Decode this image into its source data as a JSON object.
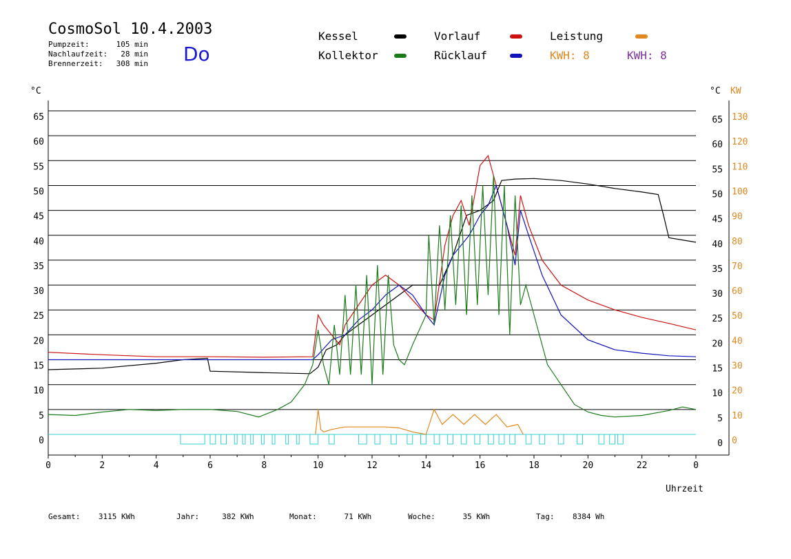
{
  "header": {
    "title": "CosmoSol 10.4.2003",
    "day": "Do",
    "stats": [
      {
        "label": "Pumpzeit:",
        "value": "105 min"
      },
      {
        "label": "Nachlaufzeit:",
        "value": "28 min"
      },
      {
        "label": "Brennerzeit:",
        "value": "308 min"
      }
    ]
  },
  "legend": {
    "kessel": "Kessel",
    "kollektor": "Kollektor",
    "vorlauf": "Vorlauf",
    "ruecklauf": "Rücklauf",
    "leistung": "Leistung",
    "kwh1": "KWH: 8",
    "kwh2": "KWH: 8"
  },
  "colors": {
    "kessel": "#000000",
    "kollektor": "#1a7a1a",
    "vorlauf": "#cc1111",
    "ruecklauf": "#1111bb",
    "leistung": "#e08820",
    "kwh2": "#8030a0",
    "pump": "#30d0d0"
  },
  "footer": [
    {
      "label": "Gesamt:",
      "value": "3115 KWh"
    },
    {
      "label": "Jahr:",
      "value": "382 KWh"
    },
    {
      "label": "Monat:",
      "value": "71 KWh"
    },
    {
      "label": "Woche:",
      "value": "35 KWh"
    },
    {
      "label": "Tag:",
      "value": "8384 Wh"
    }
  ],
  "chart_data": {
    "type": "line",
    "title": "CosmoSol 10.4.2003",
    "xlabel": "Uhrzeit",
    "ylabel_left": "°C",
    "ylabel_right_temp": "°C",
    "ylabel_right_power": "KW",
    "xlim": [
      0,
      24
    ],
    "ylim": [
      0,
      65
    ],
    "ylim_power": [
      0,
      130
    ],
    "x_tick_labels": [
      "0",
      "2",
      "4",
      "6",
      "8",
      "10",
      "12",
      "14",
      "16",
      "18",
      "20",
      "22",
      "0"
    ],
    "y_ticks": [
      0,
      5,
      10,
      15,
      20,
      25,
      30,
      35,
      40,
      45,
      50,
      55,
      60,
      65
    ],
    "y_ticks_power": [
      0,
      10,
      20,
      30,
      40,
      50,
      60,
      70,
      80,
      90,
      100,
      110,
      120,
      130
    ],
    "grid": true,
    "legend_position": "top",
    "series": [
      {
        "name": "Kessel",
        "x": [
          0,
          2,
          4,
          5,
          5.9,
          6,
          8,
          9.7,
          10,
          10.3,
          10.7,
          11,
          11.5,
          12,
          12.5,
          13,
          13.5,
          14,
          14.5,
          15,
          15.5,
          16,
          16.5,
          16.8,
          17.3,
          18,
          19,
          20,
          21,
          22,
          22.6,
          22.8,
          23,
          24
        ],
        "y": [
          13,
          13.3,
          14.3,
          15,
          15.3,
          12.7,
          12.4,
          12.2,
          13.5,
          17,
          18,
          20,
          22,
          24,
          26,
          28,
          30,
          30,
          30,
          36,
          44,
          45,
          47,
          51,
          51.3,
          51.4,
          51,
          50.3,
          49.4,
          48.7,
          48.2,
          44,
          39.5,
          38.6
        ]
      },
      {
        "name": "Vorlauf",
        "x": [
          0,
          2,
          4,
          6,
          8,
          9.8,
          10,
          10.2,
          10.5,
          10.8,
          11,
          11.5,
          12,
          12.5,
          13,
          13.5,
          14,
          14.3,
          14.7,
          15,
          15.3,
          15.6,
          16,
          16.3,
          16.6,
          17,
          17.3,
          17.5,
          17.8,
          18.3,
          19,
          20,
          21,
          22,
          23,
          24
        ],
        "y": [
          16.5,
          16,
          15.6,
          15.6,
          15.5,
          15.6,
          24,
          22,
          20,
          18,
          22,
          26,
          30,
          32,
          30,
          27,
          24,
          23,
          38,
          44,
          47,
          42,
          54,
          56,
          50,
          42,
          36,
          48,
          42,
          35,
          30,
          27,
          25,
          23.5,
          22.3,
          21
        ]
      },
      {
        "name": "Rücklauf",
        "x": [
          0,
          2,
          4,
          6,
          8,
          9.8,
          10,
          10.5,
          11,
          11.5,
          12,
          12.5,
          13,
          13.5,
          14,
          14.3,
          14.7,
          15,
          15.3,
          15.6,
          16,
          16.3,
          16.6,
          17,
          17.3,
          17.5,
          17.8,
          18.3,
          19,
          20,
          21,
          22,
          23,
          24
        ],
        "y": [
          15,
          15,
          15,
          15,
          15,
          15,
          16,
          19,
          20,
          23,
          25,
          28,
          30,
          28,
          24,
          22,
          32,
          36,
          38,
          40,
          44,
          46,
          50,
          42,
          34,
          45,
          40,
          32,
          24,
          19,
          17,
          16.3,
          15.8,
          15.6
        ]
      },
      {
        "name": "Kollektor",
        "x": [
          0,
          1,
          2,
          3,
          4,
          5,
          6,
          7,
          7.8,
          8.5,
          9,
          9.5,
          9.8,
          10,
          10.2,
          10.4,
          10.6,
          10.8,
          11,
          11.2,
          11.4,
          11.6,
          11.8,
          12,
          12.2,
          12.4,
          12.6,
          12.8,
          13,
          13.2,
          13.5,
          14,
          14.1,
          14.3,
          14.5,
          14.7,
          14.9,
          15.1,
          15.3,
          15.5,
          15.7,
          15.9,
          16.1,
          16.3,
          16.5,
          16.7,
          16.9,
          17.1,
          17.3,
          17.5,
          17.7,
          17.9,
          18.2,
          18.5,
          19,
          19.5,
          20,
          20.5,
          21,
          22,
          23,
          23.5,
          24
        ],
        "y": [
          4,
          3.8,
          4.5,
          5,
          4.8,
          5,
          5,
          4.6,
          3.5,
          5,
          6.5,
          10,
          14,
          21,
          14,
          10,
          22,
          12,
          28,
          12,
          30,
          12,
          32,
          10,
          34,
          12,
          32,
          18,
          15,
          14,
          18,
          24,
          40,
          22,
          42,
          25,
          44,
          26,
          46,
          24,
          48,
          26,
          50,
          28,
          52,
          24,
          50,
          20,
          48,
          26,
          30,
          26,
          20,
          14,
          10,
          6,
          4.5,
          3.8,
          3.5,
          3.8,
          4.8,
          5.5,
          5
        ]
      },
      {
        "name": "Leistung",
        "x": [
          9.9,
          10,
          10.1,
          10.2,
          10.5,
          11,
          11.5,
          12,
          12.5,
          13,
          13.5,
          14,
          14.3,
          14.6,
          15,
          15.4,
          15.8,
          16.2,
          16.6,
          17,
          17.4,
          17.6
        ],
        "y": [
          0,
          5,
          1,
          0.5,
          1,
          1.5,
          1.5,
          1.5,
          1.5,
          1.3,
          0.5,
          0,
          5,
          2,
          4,
          2,
          4,
          2,
          4,
          1.5,
          2,
          0
        ]
      }
    ],
    "pump_intervals_h": [
      [
        4.9,
        5.8
      ],
      [
        6,
        6.2
      ],
      [
        6.4,
        6.6
      ],
      [
        6.9,
        7
      ],
      [
        7.2,
        7.3
      ],
      [
        7.5,
        7.6
      ],
      [
        7.9,
        8
      ],
      [
        8.3,
        8.4
      ],
      [
        8.8,
        8.9
      ],
      [
        9.2,
        9.3
      ],
      [
        9.7,
        10
      ],
      [
        10.4,
        10.6
      ],
      [
        11.5,
        11.8
      ],
      [
        12.1,
        12.3
      ],
      [
        12.7,
        12.9
      ],
      [
        13.3,
        13.5
      ],
      [
        13.8,
        14
      ],
      [
        14.3,
        14.5
      ],
      [
        14.8,
        15
      ],
      [
        15.3,
        15.5
      ],
      [
        15.8,
        16
      ],
      [
        16.3,
        16.5
      ],
      [
        16.7,
        16.9
      ],
      [
        17.1,
        17.3
      ],
      [
        17.7,
        17.9
      ],
      [
        18.2,
        18.4
      ],
      [
        18.9,
        19.1
      ],
      [
        19.6,
        19.8
      ],
      [
        20.4,
        20.6
      ],
      [
        20.8,
        21
      ],
      [
        21.1,
        21.3
      ]
    ]
  }
}
